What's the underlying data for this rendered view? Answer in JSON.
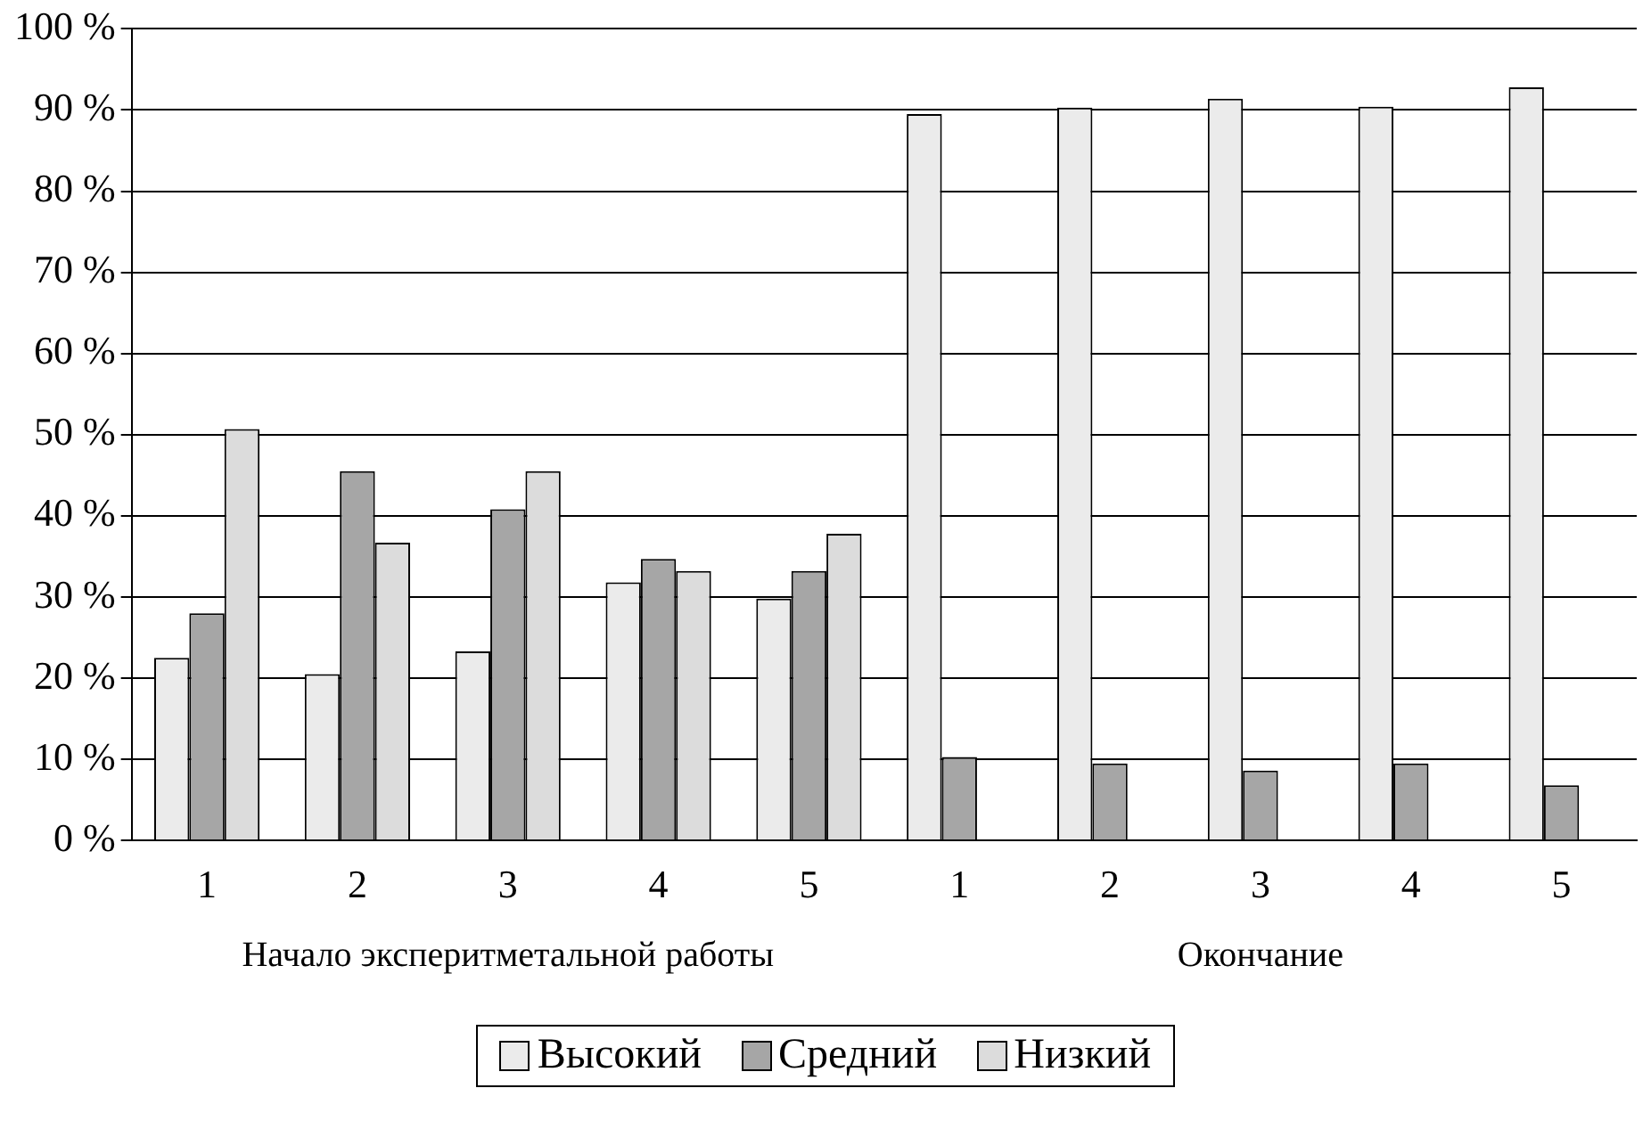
{
  "chart_data": {
    "type": "bar",
    "categories": [
      "1",
      "2",
      "3",
      "4",
      "5",
      "1",
      "2",
      "3",
      "4",
      "5"
    ],
    "series": [
      {
        "name": "Высокий",
        "color": "#ebebeb",
        "values": [
          22.5,
          20.5,
          23.3,
          31.8,
          29.8,
          89.5,
          90.3,
          91.4,
          90.4,
          92.8
        ]
      },
      {
        "name": "Средний",
        "color": "#a6a6a6",
        "values": [
          28,
          45.5,
          40.8,
          34.7,
          33.2,
          10.3,
          9.5,
          8.6,
          9.5,
          6.8
        ]
      },
      {
        "name": "Низкий",
        "color": "#dcdcdc",
        "values": [
          50.7,
          36.7,
          45.5,
          33.2,
          37.8,
          0,
          0,
          0,
          0,
          0
        ]
      }
    ],
    "ylim": [
      0,
      100
    ],
    "yticks": [
      {
        "value": 0,
        "label": "0 %"
      },
      {
        "value": 10,
        "label": "10 %"
      },
      {
        "value": 20,
        "label": "20 %"
      },
      {
        "value": 30,
        "label": "30 %"
      },
      {
        "value": 40,
        "label": "40 %"
      },
      {
        "value": 50,
        "label": "50 %"
      },
      {
        "value": 60,
        "label": "60 %"
      },
      {
        "value": 70,
        "label": "70 %"
      },
      {
        "value": 80,
        "label": "80 %"
      },
      {
        "value": 90,
        "label": "90 %"
      },
      {
        "value": 100,
        "label": "100 %"
      }
    ],
    "annotations": [
      "Начало эксперитмeтальной работы",
      "Окончание"
    ],
    "grid": "y",
    "legend": "bottom"
  }
}
